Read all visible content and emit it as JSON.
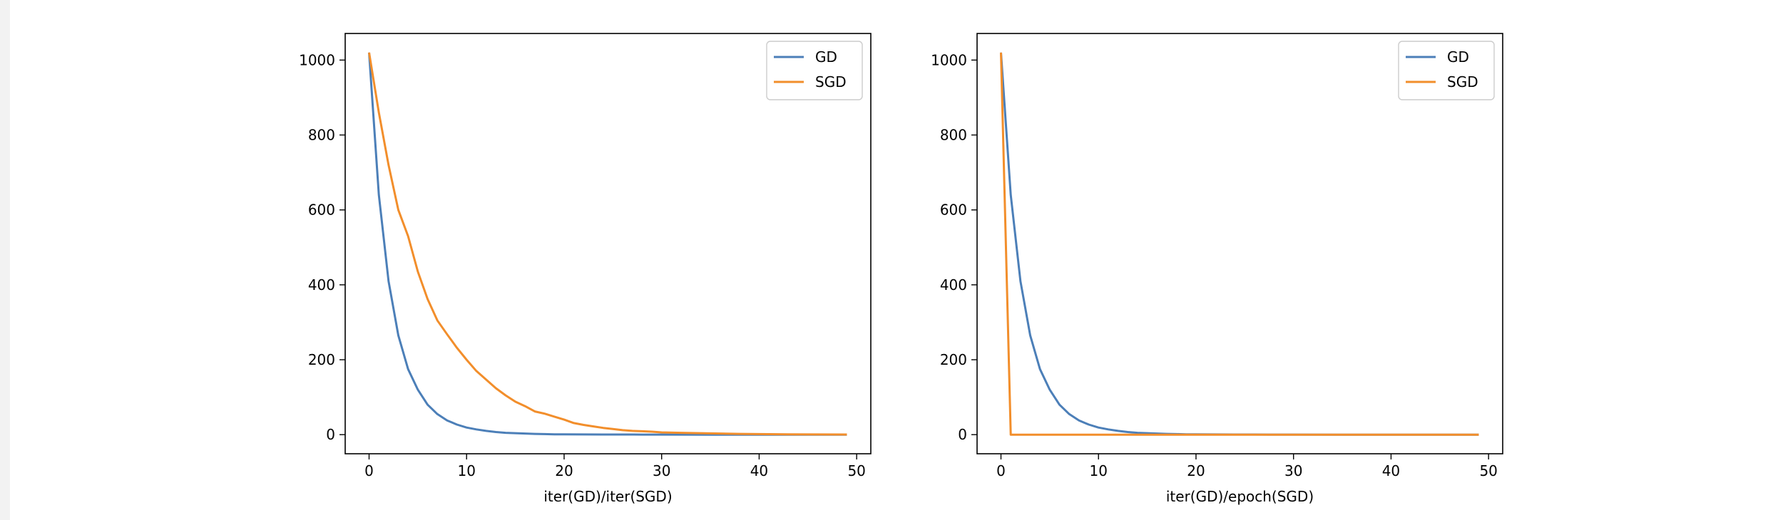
{
  "colors": {
    "GD": "#4c7fb8",
    "SGD": "#f28e2b",
    "axis": "#000000"
  },
  "chart_data": [
    {
      "type": "line",
      "title": "",
      "xlabel": "iter(GD)/iter(SGD)",
      "ylabel": "",
      "xlim": [
        -2.45,
        51.45
      ],
      "ylim": [
        -51,
        1071
      ],
      "xticks": [
        0,
        10,
        20,
        30,
        40,
        50
      ],
      "yticks": [
        0,
        200,
        400,
        600,
        800,
        1000
      ],
      "grid": false,
      "legend": "top-right",
      "series": [
        {
          "name": "GD",
          "x": [
            0,
            1,
            2,
            3,
            4,
            5,
            6,
            7,
            8,
            9,
            10,
            11,
            12,
            13,
            14,
            15,
            16,
            17,
            18,
            19,
            20,
            22,
            24,
            26,
            28,
            30,
            35,
            40,
            45,
            49
          ],
          "y": [
            1020,
            640,
            410,
            265,
            175,
            120,
            80,
            55,
            38,
            27,
            19,
            14,
            10,
            7,
            5,
            4,
            3,
            2,
            1.5,
            1,
            1,
            0.6,
            0.4,
            0.3,
            0.2,
            0.1,
            0,
            0,
            0,
            0
          ]
        },
        {
          "name": "SGD",
          "x": [
            0,
            1,
            2,
            3,
            4,
            5,
            6,
            7,
            8,
            9,
            10,
            11,
            12,
            13,
            14,
            15,
            16,
            17,
            18,
            19,
            20,
            21,
            22,
            23,
            24,
            25,
            26,
            27,
            28,
            29,
            30,
            32,
            34,
            36,
            38,
            40,
            43,
            46,
            49
          ],
          "y": [
            1020,
            860,
            720,
            600,
            530,
            435,
            362,
            305,
            268,
            232,
            200,
            170,
            147,
            124,
            105,
            88,
            76,
            62,
            56,
            48,
            40,
            31,
            26,
            22,
            18,
            15,
            12,
            10,
            9,
            8,
            6,
            5,
            4,
            3,
            2,
            1.5,
            1,
            0.5,
            0.3
          ]
        }
      ]
    },
    {
      "type": "line",
      "title": "",
      "xlabel": "iter(GD)/epoch(SGD)",
      "ylabel": "",
      "xlim": [
        -2.45,
        51.45
      ],
      "ylim": [
        -51,
        1071
      ],
      "xticks": [
        0,
        10,
        20,
        30,
        40,
        50
      ],
      "yticks": [
        0,
        200,
        400,
        600,
        800,
        1000
      ],
      "grid": false,
      "legend": "top-right",
      "series": [
        {
          "name": "GD",
          "x": [
            0,
            1,
            2,
            3,
            4,
            5,
            6,
            7,
            8,
            9,
            10,
            11,
            12,
            13,
            14,
            15,
            16,
            17,
            18,
            19,
            20,
            22,
            24,
            26,
            28,
            30,
            35,
            40,
            45,
            49
          ],
          "y": [
            1020,
            640,
            410,
            265,
            175,
            120,
            80,
            55,
            38,
            27,
            19,
            14,
            10,
            7,
            5,
            4,
            3,
            2,
            1.5,
            1,
            1,
            0.6,
            0.4,
            0.3,
            0.2,
            0.1,
            0,
            0,
            0,
            0
          ]
        },
        {
          "name": "SGD",
          "x": [
            0,
            1,
            2,
            5,
            10,
            20,
            30,
            40,
            49
          ],
          "y": [
            1020,
            0,
            0,
            0,
            0,
            0,
            0,
            0,
            0
          ]
        }
      ]
    }
  ]
}
